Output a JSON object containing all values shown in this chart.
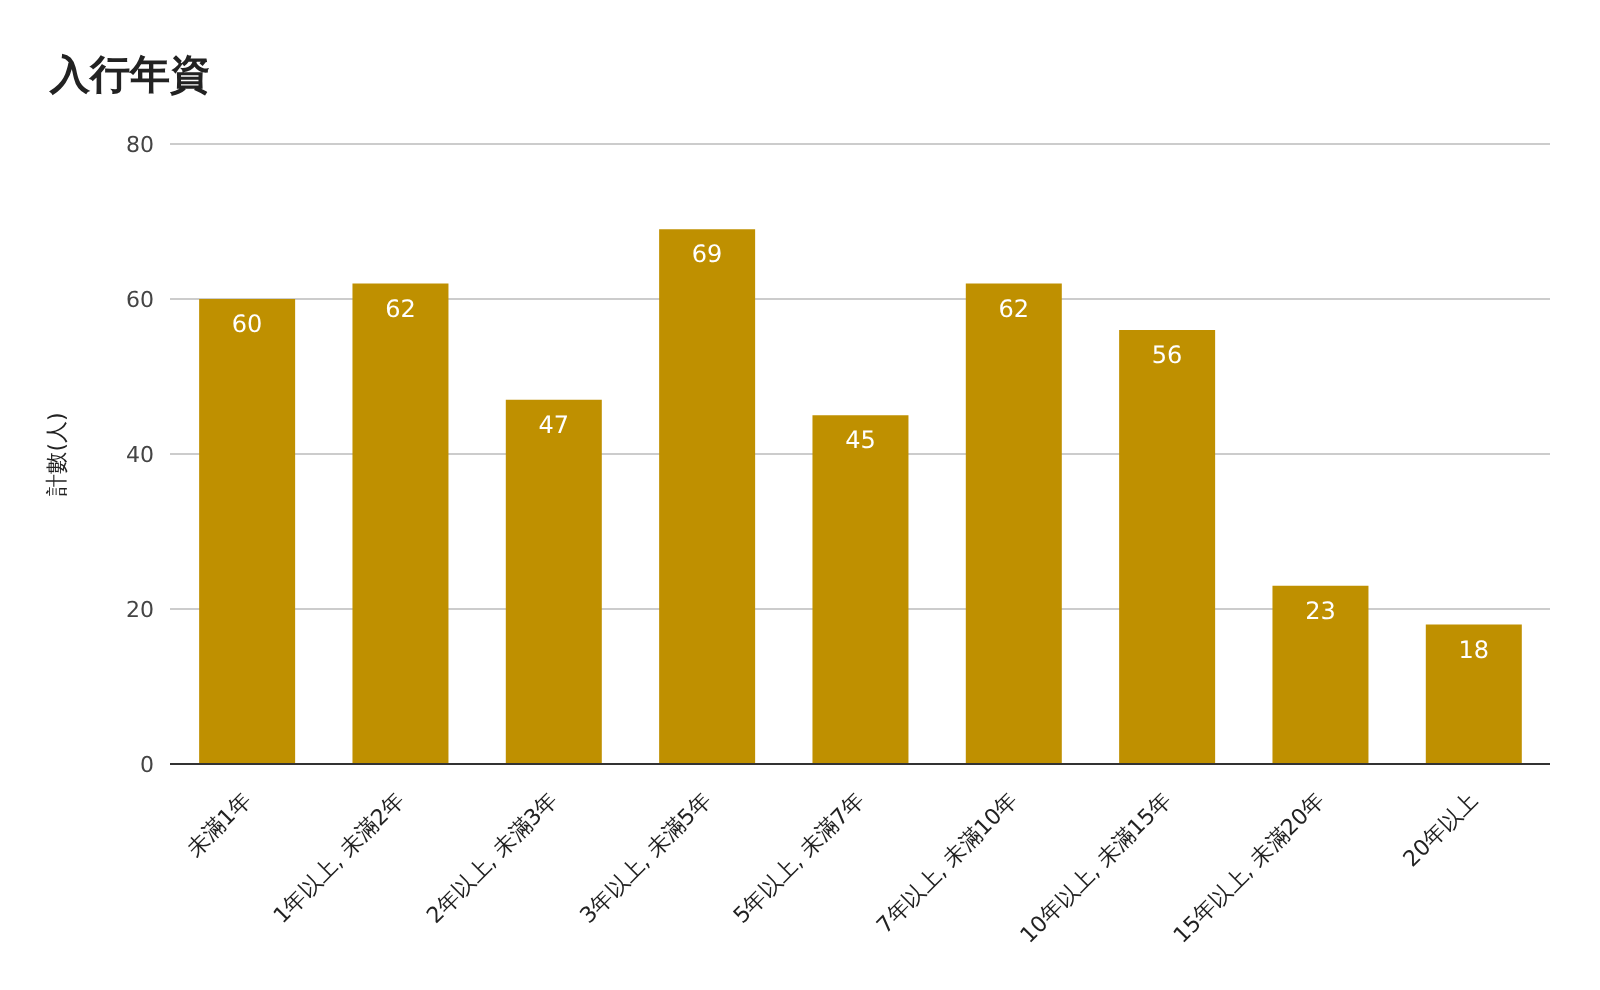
{
  "chart_data": {
    "type": "bar",
    "title": "入行年資",
    "ylabel": "計數(人)",
    "categories": [
      "未滿1年",
      "1年以上, 未滿2年",
      "2年以上, 未滿3年",
      "3年以上, 未滿5年",
      "5年以上, 未滿7年",
      "7年以上, 未滿10年",
      "10年以上, 未滿15年",
      "15年以上, 未滿20年",
      "20年以上"
    ],
    "values": [
      60,
      62,
      47,
      69,
      45,
      62,
      56,
      23,
      18
    ],
    "color": "#bf9000",
    "ylim": [
      0,
      80
    ],
    "yticks": [
      0,
      20,
      40,
      60,
      80
    ],
    "grid": "y",
    "data_labels": true,
    "legend": false
  }
}
